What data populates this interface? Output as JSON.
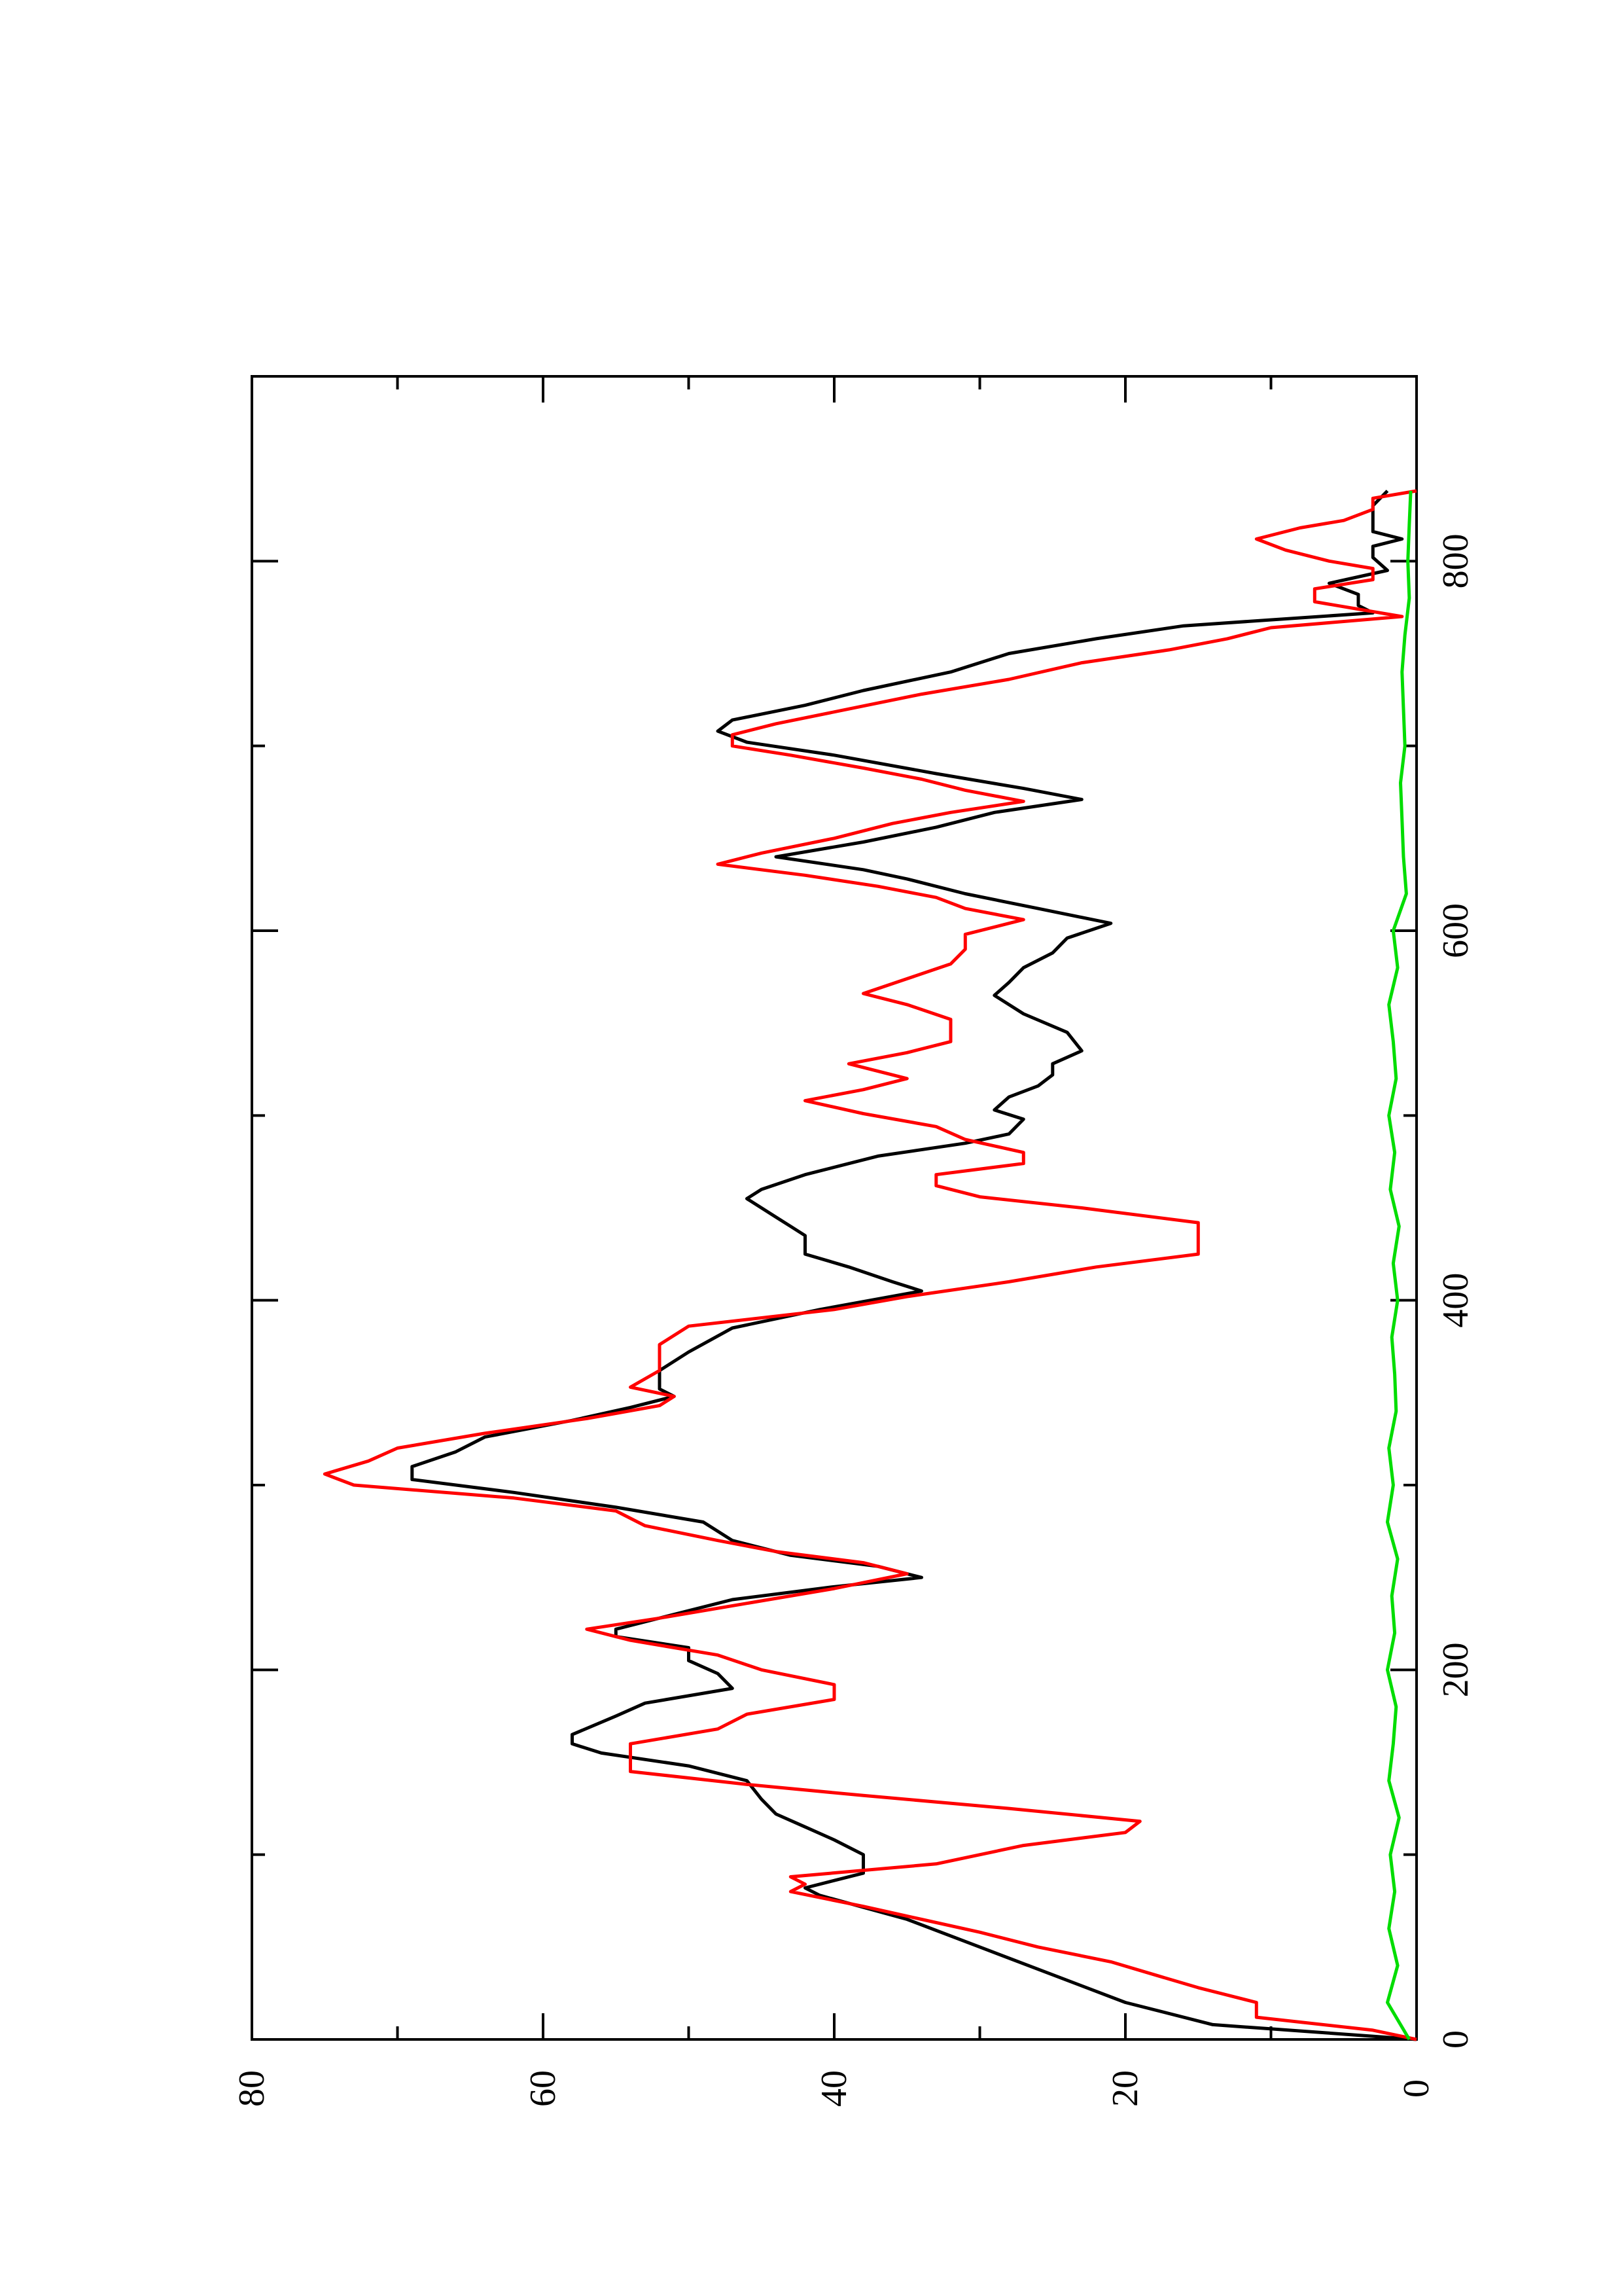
{
  "chart_data": {
    "type": "line",
    "orientation": "rotated-90-ccw",
    "title": "",
    "xlabel": "",
    "ylabel": "",
    "xlim": [
      0,
      900
    ],
    "ylim": [
      0,
      80
    ],
    "x_ticks": [
      0,
      200,
      400,
      600,
      800
    ],
    "y_ticks": [
      0,
      20,
      40,
      60,
      80
    ],
    "x_minor_ticks": [
      100,
      300,
      500,
      700
    ],
    "y_minor_ticks": [
      10,
      30,
      50,
      70
    ],
    "grid": false,
    "legend": "none",
    "series": [
      {
        "color": "#000000",
        "points": [
          [
            0,
            0
          ],
          [
            8,
            14
          ],
          [
            20,
            20
          ],
          [
            35,
            25
          ],
          [
            50,
            30
          ],
          [
            65,
            35
          ],
          [
            78,
            41
          ],
          [
            82,
            42
          ],
          [
            90,
            38
          ],
          [
            98,
            38
          ],
          [
            100,
            38
          ],
          [
            108,
            40
          ],
          [
            115,
            42
          ],
          [
            122,
            44
          ],
          [
            130,
            45
          ],
          [
            140,
            46
          ],
          [
            148,
            50
          ],
          [
            155,
            56
          ],
          [
            160,
            58
          ],
          [
            165,
            58
          ],
          [
            175,
            55
          ],
          [
            182,
            53
          ],
          [
            190,
            47
          ],
          [
            198,
            48
          ],
          [
            205,
            50
          ],
          [
            212,
            50
          ],
          [
            218,
            55
          ],
          [
            222,
            55
          ],
          [
            230,
            51
          ],
          [
            238,
            47
          ],
          [
            245,
            40
          ],
          [
            250,
            34
          ],
          [
            256,
            37
          ],
          [
            262,
            43
          ],
          [
            270,
            47
          ],
          [
            280,
            49
          ],
          [
            288,
            55
          ],
          [
            296,
            62
          ],
          [
            303,
            69
          ],
          [
            310,
            69
          ],
          [
            318,
            66
          ],
          [
            326,
            64
          ],
          [
            335,
            58
          ],
          [
            342,
            54
          ],
          [
            348,
            51
          ],
          [
            352,
            52
          ],
          [
            362,
            52
          ],
          [
            372,
            50
          ],
          [
            385,
            47
          ],
          [
            395,
            41
          ],
          [
            405,
            34
          ],
          [
            410,
            36
          ],
          [
            418,
            39
          ],
          [
            425,
            42
          ],
          [
            435,
            42
          ],
          [
            440,
            43
          ],
          [
            445,
            44
          ],
          [
            455,
            46
          ],
          [
            460,
            45
          ],
          [
            468,
            42
          ],
          [
            478,
            37
          ],
          [
            485,
            31
          ],
          [
            490,
            28
          ],
          [
            498,
            27
          ],
          [
            503,
            29
          ],
          [
            510,
            28
          ],
          [
            516,
            26
          ],
          [
            522,
            25
          ],
          [
            528,
            25
          ],
          [
            535,
            23
          ],
          [
            545,
            24
          ],
          [
            555,
            27
          ],
          [
            565,
            29
          ],
          [
            572,
            28
          ],
          [
            580,
            27
          ],
          [
            588,
            25
          ],
          [
            596,
            24
          ],
          [
            604,
            21
          ],
          [
            612,
            26
          ],
          [
            620,
            31
          ],
          [
            628,
            35
          ],
          [
            633,
            38
          ],
          [
            640,
            44
          ],
          [
            648,
            38
          ],
          [
            656,
            33
          ],
          [
            664,
            29
          ],
          [
            671,
            23
          ],
          [
            677,
            27
          ],
          [
            685,
            33
          ],
          [
            695,
            40
          ],
          [
            702,
            46
          ],
          [
            708,
            48
          ],
          [
            714,
            47
          ],
          [
            722,
            42
          ],
          [
            730,
            38
          ],
          [
            740,
            32
          ],
          [
            750,
            28
          ],
          [
            758,
            22
          ],
          [
            765,
            16
          ],
          [
            772,
            3
          ],
          [
            776,
            4
          ],
          [
            782,
            4
          ],
          [
            788,
            6
          ],
          [
            795,
            2
          ],
          [
            802,
            3
          ],
          [
            808,
            3
          ],
          [
            812,
            1
          ],
          [
            816,
            3
          ],
          [
            818,
            3
          ],
          [
            822,
            3
          ],
          [
            830,
            3
          ],
          [
            838,
            2
          ]
        ]
      },
      {
        "color": "#ff0000",
        "points": [
          [
            0,
            0
          ],
          [
            5,
            3
          ],
          [
            12,
            11
          ],
          [
            20,
            11
          ],
          [
            28,
            15
          ],
          [
            35,
            18
          ],
          [
            42,
            21
          ],
          [
            50,
            26
          ],
          [
            58,
            30
          ],
          [
            65,
            34
          ],
          [
            72,
            38
          ],
          [
            80,
            43
          ],
          [
            84,
            42
          ],
          [
            88,
            43
          ],
          [
            95,
            33
          ],
          [
            105,
            27
          ],
          [
            112,
            20
          ],
          [
            118,
            19
          ],
          [
            125,
            28
          ],
          [
            132,
            38
          ],
          [
            138,
            46
          ],
          [
            145,
            54
          ],
          [
            152,
            54
          ],
          [
            160,
            54
          ],
          [
            168,
            48
          ],
          [
            176,
            46
          ],
          [
            184,
            40
          ],
          [
            192,
            40
          ],
          [
            200,
            45
          ],
          [
            208,
            48
          ],
          [
            216,
            54
          ],
          [
            222,
            57
          ],
          [
            228,
            52
          ],
          [
            236,
            46
          ],
          [
            244,
            40
          ],
          [
            252,
            35
          ],
          [
            258,
            38
          ],
          [
            264,
            44
          ],
          [
            270,
            48
          ],
          [
            278,
            53
          ],
          [
            286,
            55
          ],
          [
            293,
            62
          ],
          [
            300,
            73
          ],
          [
            306,
            75
          ],
          [
            313,
            72
          ],
          [
            320,
            70
          ],
          [
            328,
            64
          ],
          [
            336,
            57
          ],
          [
            343,
            52
          ],
          [
            348,
            51
          ],
          [
            353,
            54
          ],
          [
            362,
            52
          ],
          [
            376,
            52
          ],
          [
            386,
            50
          ],
          [
            395,
            40
          ],
          [
            402,
            35
          ],
          [
            410,
            28
          ],
          [
            418,
            22
          ],
          [
            425,
            15
          ],
          [
            442,
            15
          ],
          [
            450,
            23
          ],
          [
            456,
            30
          ],
          [
            462,
            33
          ],
          [
            468,
            33
          ],
          [
            474,
            27
          ],
          [
            480,
            27
          ],
          [
            487,
            31
          ],
          [
            494,
            33
          ],
          [
            501,
            38
          ],
          [
            508,
            42
          ],
          [
            514,
            38
          ],
          [
            520,
            35
          ],
          [
            528,
            39
          ],
          [
            534,
            35
          ],
          [
            540,
            32
          ],
          [
            552,
            32
          ],
          [
            560,
            35
          ],
          [
            566,
            38
          ],
          [
            574,
            35
          ],
          [
            582,
            32
          ],
          [
            590,
            31
          ],
          [
            598,
            31
          ],
          [
            606,
            27
          ],
          [
            612,
            31
          ],
          [
            618,
            33
          ],
          [
            624,
            37
          ],
          [
            630,
            42
          ],
          [
            636,
            48
          ],
          [
            642,
            45
          ],
          [
            650,
            40
          ],
          [
            658,
            36
          ],
          [
            664,
            32
          ],
          [
            670,
            27
          ],
          [
            676,
            31
          ],
          [
            682,
            34
          ],
          [
            688,
            38
          ],
          [
            695,
            43
          ],
          [
            700,
            47
          ],
          [
            706,
            47
          ],
          [
            712,
            44
          ],
          [
            720,
            39
          ],
          [
            728,
            34
          ],
          [
            736,
            28
          ],
          [
            745,
            23
          ],
          [
            752,
            17
          ],
          [
            758,
            13
          ],
          [
            764,
            10
          ],
          [
            770,
            1
          ],
          [
            778,
            7
          ],
          [
            785,
            7
          ],
          [
            790,
            3
          ],
          [
            796,
            3
          ],
          [
            800,
            6
          ],
          [
            806,
            9
          ],
          [
            812,
            11
          ],
          [
            818,
            8
          ],
          [
            822,
            5
          ],
          [
            828,
            3
          ],
          [
            834,
            3
          ],
          [
            838,
            0
          ]
        ]
      },
      {
        "color": "#00dd00",
        "points": [
          [
            0,
            0.5
          ],
          [
            20,
            2.0
          ],
          [
            40,
            1.3
          ],
          [
            60,
            1.9
          ],
          [
            80,
            1.5
          ],
          [
            100,
            1.8
          ],
          [
            120,
            1.2
          ],
          [
            140,
            1.9
          ],
          [
            160,
            1.6
          ],
          [
            180,
            1.4
          ],
          [
            200,
            2.0
          ],
          [
            220,
            1.5
          ],
          [
            240,
            1.7
          ],
          [
            260,
            1.3
          ],
          [
            280,
            2.0
          ],
          [
            300,
            1.6
          ],
          [
            320,
            1.9
          ],
          [
            340,
            1.4
          ],
          [
            360,
            1.5
          ],
          [
            380,
            1.7
          ],
          [
            400,
            1.3
          ],
          [
            420,
            1.6
          ],
          [
            440,
            1.2
          ],
          [
            460,
            1.8
          ],
          [
            480,
            1.5
          ],
          [
            500,
            1.9
          ],
          [
            520,
            1.4
          ],
          [
            540,
            1.6
          ],
          [
            560,
            1.9
          ],
          [
            580,
            1.3
          ],
          [
            600,
            1.6
          ],
          [
            620,
            0.7
          ],
          [
            640,
            0.9
          ],
          [
            660,
            1.0
          ],
          [
            680,
            1.1
          ],
          [
            700,
            0.8
          ],
          [
            720,
            0.9
          ],
          [
            740,
            1.0
          ],
          [
            760,
            0.8
          ],
          [
            780,
            0.5
          ],
          [
            800,
            0.6
          ],
          [
            820,
            0.5
          ],
          [
            838,
            0.4
          ]
        ]
      }
    ]
  }
}
